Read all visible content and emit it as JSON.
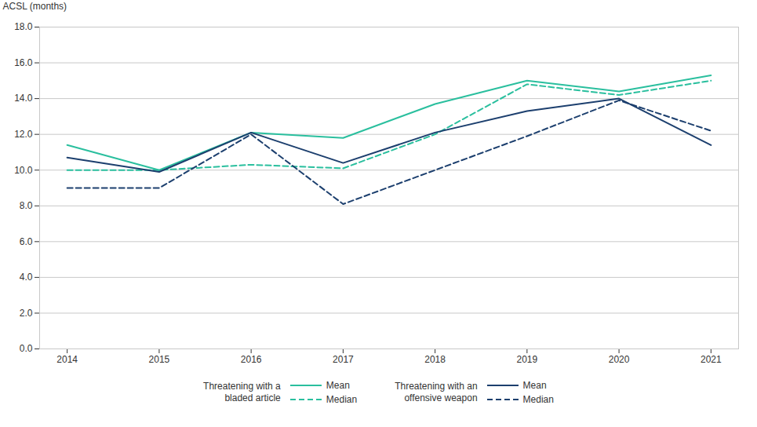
{
  "chart_data": {
    "type": "line",
    "ylabel": "ACSL (months)",
    "x": [
      2014,
      2015,
      2016,
      2017,
      2018,
      2019,
      2020,
      2021
    ],
    "series": [
      {
        "name": "Mean",
        "group": "Threatening with a\nbladed article",
        "color": "#2abf9e",
        "line_style": "solid",
        "values": [
          11.4,
          10.0,
          12.1,
          11.8,
          13.7,
          15.0,
          14.4,
          15.3
        ]
      },
      {
        "name": "Median",
        "group": "Threatening with a\nbladed article",
        "color": "#2abf9e",
        "line_style": "dashed",
        "values": [
          10.0,
          10.0,
          10.3,
          10.1,
          12.0,
          14.8,
          14.2,
          15.0
        ]
      },
      {
        "name": "Mean",
        "group": "Threatening with an\noffensive weapon",
        "color": "#1c3f6e",
        "line_style": "solid",
        "values": [
          10.7,
          9.9,
          12.1,
          10.4,
          12.1,
          13.3,
          14.0,
          11.4
        ]
      },
      {
        "name": "Median",
        "group": "Threatening with an\noffensive weapon",
        "color": "#1c3f6e",
        "line_style": "dashed",
        "values": [
          9.0,
          9.0,
          12.0,
          8.1,
          10.0,
          11.9,
          13.9,
          12.2
        ]
      }
    ],
    "xlim": [
      2013.7,
      2021.3
    ],
    "xticks": [
      2014,
      2015,
      2016,
      2017,
      2018,
      2019,
      2020,
      2021
    ],
    "ylim": [
      0.0,
      18.0
    ],
    "yticks": [
      {
        "value": 0,
        "label": "0.0"
      },
      {
        "value": 2,
        "label": "2.0"
      },
      {
        "value": 4,
        "label": "4.0"
      },
      {
        "value": 6,
        "label": "6.0"
      },
      {
        "value": 8,
        "label": "8.0"
      },
      {
        "value": 10,
        "label": "10.0"
      },
      {
        "value": 12,
        "label": "12.0"
      },
      {
        "value": 14,
        "label": "14.0"
      },
      {
        "value": 16,
        "label": "16.0"
      },
      {
        "value": 18,
        "label": "18.0"
      }
    ],
    "grid": true,
    "legend": "bottom"
  }
}
